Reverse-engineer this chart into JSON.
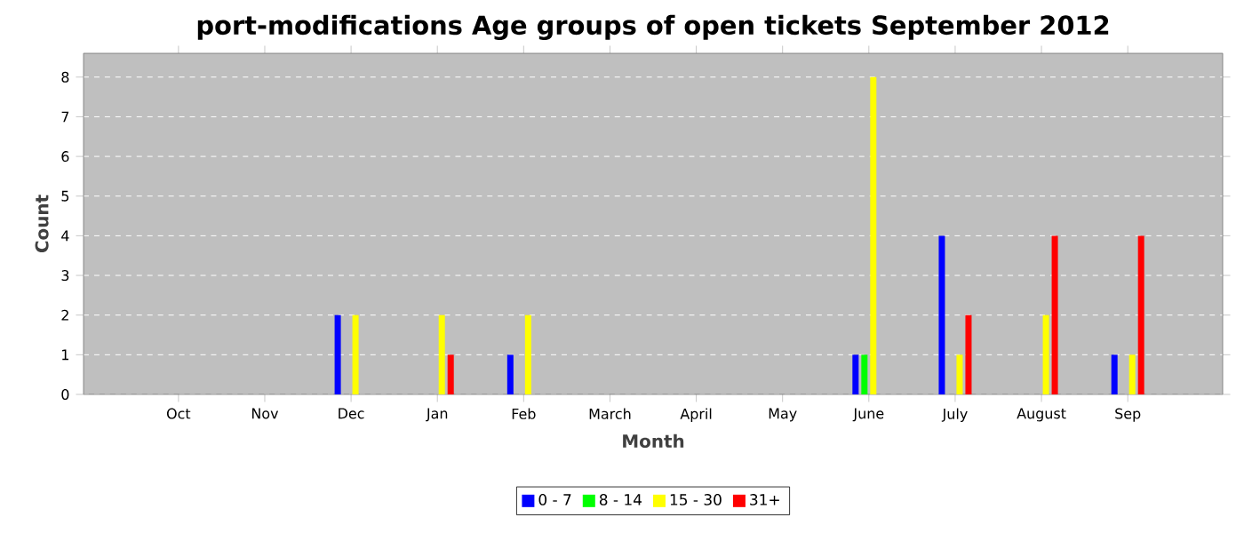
{
  "chart_data": {
    "type": "bar",
    "title": "port-modifications Age groups of open tickets September 2012",
    "xlabel": "Month",
    "ylabel": "Count",
    "categories": [
      "Oct",
      "Nov",
      "Dec",
      "Jan",
      "Feb",
      "March",
      "April",
      "May",
      "June",
      "July",
      "August",
      "Sep"
    ],
    "series": [
      {
        "name": "0 - 7",
        "color": "#0000ff",
        "values": [
          0,
          0,
          2,
          0,
          1,
          0,
          0,
          0,
          1,
          4,
          0,
          1
        ]
      },
      {
        "name": "8 - 14",
        "color": "#00ff00",
        "values": [
          0,
          0,
          0,
          0,
          0,
          0,
          0,
          0,
          1,
          0,
          0,
          0
        ]
      },
      {
        "name": "15 - 30",
        "color": "#ffff00",
        "values": [
          0,
          0,
          2,
          2,
          2,
          0,
          0,
          0,
          8,
          1,
          2,
          1
        ]
      },
      {
        "name": "31+",
        "color": "#ff0000",
        "values": [
          0,
          0,
          0,
          1,
          0,
          0,
          0,
          0,
          0,
          2,
          4,
          4
        ]
      }
    ],
    "ylim": [
      0,
      8.6
    ],
    "yticks": [
      0,
      1,
      2,
      3,
      4,
      5,
      6,
      7,
      8
    ],
    "grid": "y",
    "legend": "bottom"
  }
}
